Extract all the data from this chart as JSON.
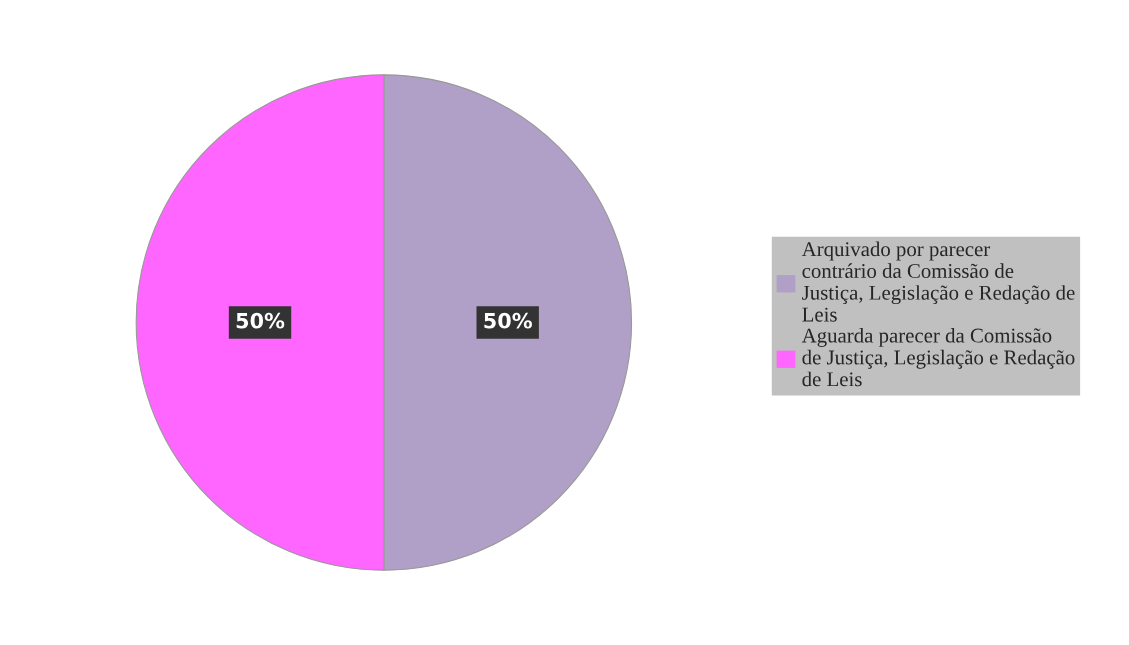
{
  "chart_data": {
    "type": "pie",
    "categories": [
      "Arquivado por parecer\ncontrário da Comissão de\nJustiça, Legislação e Redação de\nLeis",
      "Aguarda parecer da Comissão\nde Justiça, Legislação e Redação\nde Leis"
    ],
    "values": [
      50,
      50
    ],
    "colors": [
      "#b09fc6",
      "#ff66ff"
    ],
    "value_labels": [
      "50%",
      "50%"
    ],
    "legend": "right"
  }
}
